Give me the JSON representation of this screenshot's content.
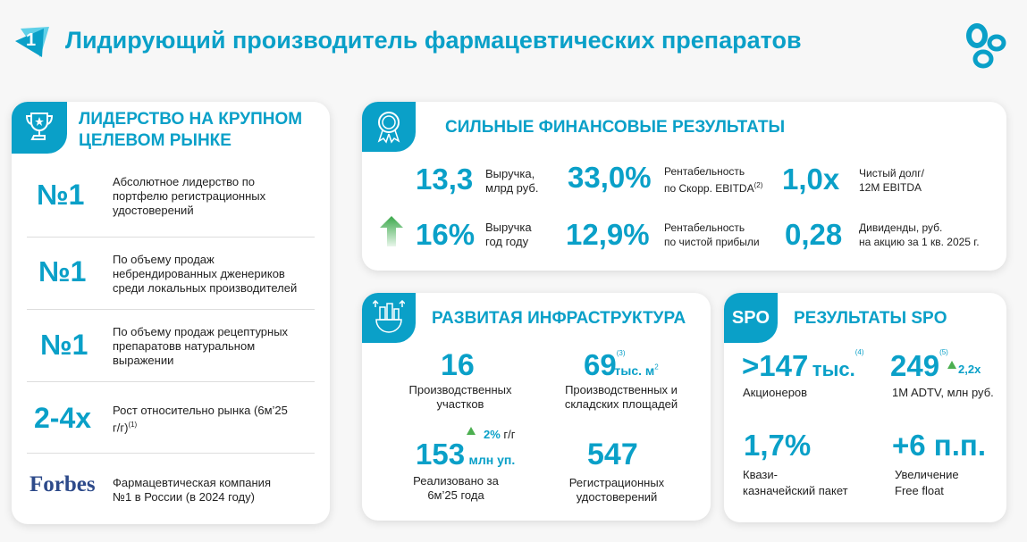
{
  "header": {
    "badge": "1",
    "title": "Лидирующий производитель фармацевтических препаратов"
  },
  "leadership": {
    "title_line1": "ЛИДЕРСТВО НА КРУПНОМ",
    "title_line2": "ЦЕЛЕВОМ РЫНКЕ",
    "items": [
      {
        "value": "№1",
        "text": "Абсолютное лидерство по портфелю регистрационных удостоверений"
      },
      {
        "value": "№1",
        "text": "По объему продаж небрендированных дженериков среди локальных производителей"
      },
      {
        "value": "№1",
        "text": "По объему продаж рецептурных препаратовв натуральном выражении"
      },
      {
        "value": "2-4x",
        "text": "Рост относительно рынка (6м’25 г/г)",
        "note": "(1)"
      },
      {
        "value": "Forbes",
        "text": "Фармацевтическая компания №1 в России (в 2024 году)"
      }
    ]
  },
  "financial": {
    "title": "СИЛЬНЫЕ ФИНАНСОВЫЕ РЕЗУЛЬТАТЫ",
    "m1": {
      "value": "13,3",
      "l1": "Выручка,",
      "l2": "млрд руб."
    },
    "m2": {
      "value": "33,0%",
      "l1": "Рентабельность",
      "l2": "по Скорр. EBITDA",
      "note": "(2)"
    },
    "m3": {
      "value": "1,0x",
      "l1": "Чистый долг/",
      "l2": "12M EBITDA"
    },
    "m4": {
      "value": "16%",
      "l1": "Выручка",
      "l2": "год году"
    },
    "m5": {
      "value": "12,9%",
      "l1": "Рентабельность",
      "l2": "по чистой прибыли"
    },
    "m6": {
      "value": "0,28",
      "l1": "Дивиденды, руб.",
      "l2": "на акцию за 1 кв. 2025 г."
    }
  },
  "infra": {
    "title": "РАЗВИТАЯ ИНФРАСТРУКТУРА",
    "a": {
      "value": "16",
      "l1": "Производственных",
      "l2": "участков"
    },
    "b": {
      "value": "69",
      "note": "(3)",
      "unit": "тыс. м",
      "sq": "2",
      "l1": "Производственных и",
      "l2": "складских площадей"
    },
    "c": {
      "value": "153",
      "unit": "млн уп.",
      "growth": "2%",
      "growth_unit": "г/г",
      "l1": "Реализовано за",
      "l2": "6м’25 года"
    },
    "d": {
      "value": "547",
      "l1": "Регистрационных",
      "l2": "удостоверений"
    }
  },
  "spo": {
    "badge": "SPO",
    "title": "РЕЗУЛЬТАТЫ SPO",
    "a": {
      "value": ">147",
      "unit": "тыс.",
      "note": "(4)",
      "label": "Акционеров"
    },
    "b": {
      "value": "249",
      "note": "(5)",
      "growth": "2,2x",
      "label": "1M ADTV, млн руб."
    },
    "c": {
      "value": "1,7%",
      "l1": "Квази-",
      "l2": "казначейский пакет"
    },
    "d": {
      "value": "+6 п.п.",
      "l1": "Увеличение",
      "l2": "Free float"
    }
  }
}
